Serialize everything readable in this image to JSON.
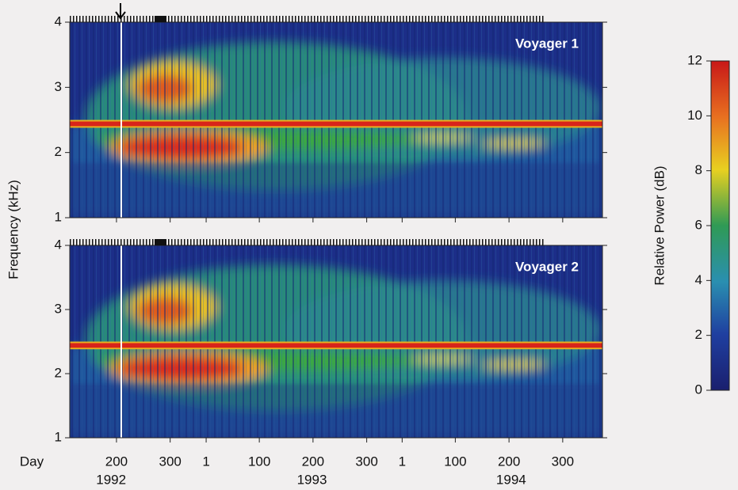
{
  "figure": {
    "panels": [
      {
        "label": "Voyager 1"
      },
      {
        "label": "Voyager 2"
      }
    ],
    "y_axis": {
      "label": "Frequency (kHz)",
      "lim": [
        1,
        4
      ],
      "ticks": [
        1,
        2,
        3,
        4
      ]
    },
    "x_axis": {
      "label": "Day",
      "lim": [
        113,
        1105
      ],
      "ticks": [
        {
          "value": 200,
          "label": "200"
        },
        {
          "value": 300,
          "label": "300"
        },
        {
          "value": 367,
          "label": "1"
        },
        {
          "value": 466,
          "label": "100"
        },
        {
          "value": 566,
          "label": "200"
        },
        {
          "value": 666,
          "label": "300"
        },
        {
          "value": 732,
          "label": "1"
        },
        {
          "value": 831,
          "label": "100"
        },
        {
          "value": 931,
          "label": "200"
        },
        {
          "value": 1031,
          "label": "300"
        }
      ],
      "year_labels": [
        {
          "value": 190,
          "label": "1992"
        },
        {
          "value": 564,
          "label": "1993"
        },
        {
          "value": 935,
          "label": "1994"
        }
      ]
    },
    "colorbar": {
      "label": "Relative Power (dB)",
      "lim": [
        0,
        12
      ],
      "ticks": [
        0,
        2,
        4,
        6,
        8,
        10,
        12
      ]
    }
  }
}
